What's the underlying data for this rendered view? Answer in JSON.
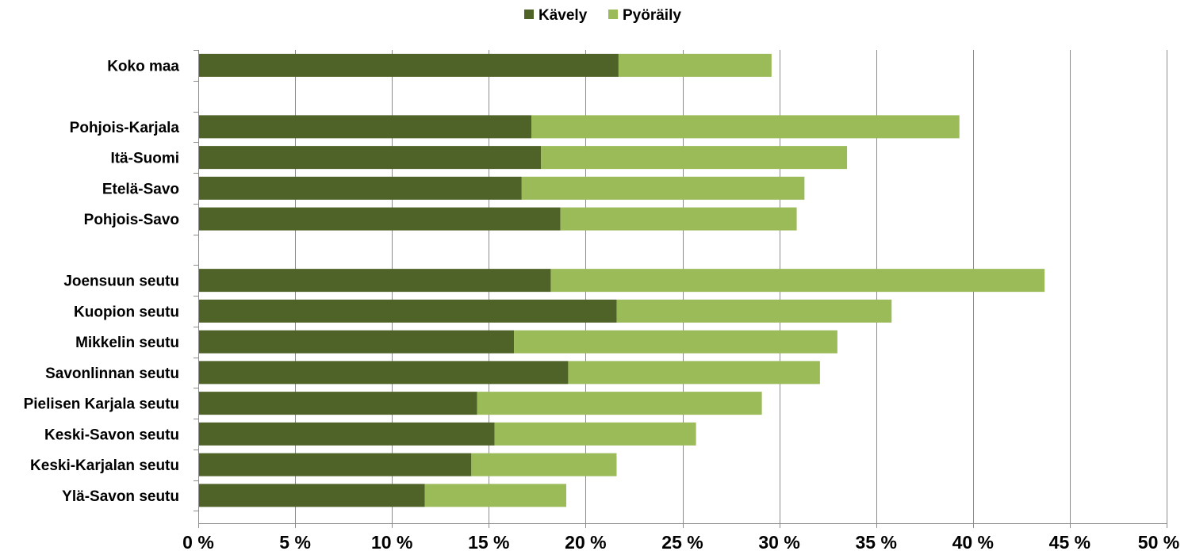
{
  "chart_data": {
    "type": "bar",
    "orientation": "horizontal",
    "stacked": true,
    "categories": [
      "Koko maa",
      "",
      "Pohjois-Karjala",
      "Itä-Suomi",
      "Etelä-Savo",
      "Pohjois-Savo",
      "",
      "Joensuun seutu",
      "Kuopion seutu",
      "Mikkelin seutu",
      "Savonlinnan seutu",
      "Pielisen Karjala seutu",
      "Keski-Savon seutu",
      "Keski-Karjalan seutu",
      "Ylä-Savon seutu"
    ],
    "series": [
      {
        "name": "Kävely",
        "color": "#4f6228",
        "values": [
          21.7,
          null,
          17.2,
          17.7,
          16.7,
          18.7,
          null,
          18.2,
          21.6,
          16.3,
          19.1,
          14.4,
          15.3,
          14.1,
          11.7
        ]
      },
      {
        "name": "Pyöräily",
        "color": "#9bbb59",
        "values": [
          7.9,
          null,
          22.1,
          15.8,
          14.6,
          12.2,
          null,
          25.5,
          14.2,
          16.7,
          13.0,
          14.7,
          10.4,
          7.5,
          7.3
        ]
      }
    ],
    "xlim": [
      0,
      50
    ],
    "xticks": [
      0,
      5,
      10,
      15,
      20,
      25,
      30,
      35,
      40,
      45,
      50
    ],
    "tick_format": "{v} %",
    "grid": true,
    "legend": {
      "placement": "top",
      "entries": [
        "Kävely",
        "Pyöräily"
      ]
    },
    "title": "",
    "xlabel": "",
    "ylabel": ""
  }
}
